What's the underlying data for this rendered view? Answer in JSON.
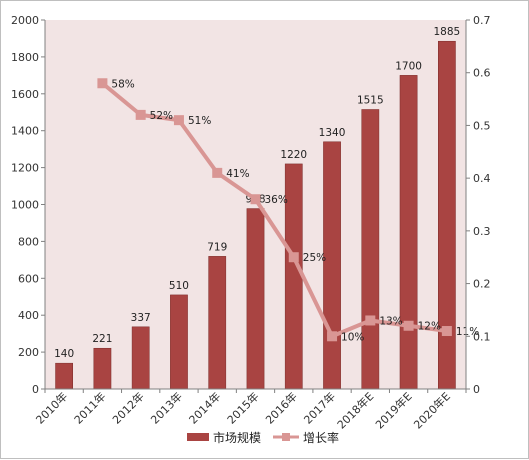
{
  "chart_data": {
    "type": "bar",
    "categories": [
      "2010年",
      "2011年",
      "2012年",
      "2013年",
      "2014年",
      "2015年",
      "2016年",
      "2017年",
      "2018年E",
      "2019年E",
      "2020年E"
    ],
    "series": [
      {
        "name": "市场规模",
        "type": "bar",
        "axis": "left",
        "values": [
          140,
          221,
          337,
          510,
          719,
          978,
          1220,
          1340,
          1515,
          1700,
          1885
        ],
        "labels": [
          "140",
          "221",
          "337",
          "510",
          "719",
          "978",
          "1220",
          "1340",
          "1515",
          "1700",
          "1885"
        ]
      },
      {
        "name": "增长率",
        "type": "line",
        "axis": "right",
        "values": [
          null,
          0.58,
          0.52,
          0.51,
          0.41,
          0.36,
          0.25,
          0.1,
          0.13,
          0.12,
          0.11
        ],
        "labels": [
          "",
          "58%",
          "52%",
          "51%",
          "41%",
          "36%",
          "25%",
          "10%",
          "13%",
          "12%",
          "11%"
        ]
      }
    ],
    "y_left": {
      "min": 0,
      "max": 2000,
      "ticks": [
        "0",
        "200",
        "400",
        "600",
        "800",
        "1000",
        "1200",
        "1400",
        "1600",
        "1800",
        "2000"
      ]
    },
    "y_right": {
      "min": 0,
      "max": 0.7,
      "ticks": [
        "0",
        "0.1",
        "0.2",
        "0.3",
        "0.4",
        "0.5",
        "0.6",
        "0.7"
      ]
    },
    "legend_position": "bottom",
    "grid": false
  },
  "colors": {
    "bar": "#A94442",
    "bar_border": "#7a2b29",
    "line": "#D99694",
    "plot_background": "#F2E4E4"
  }
}
